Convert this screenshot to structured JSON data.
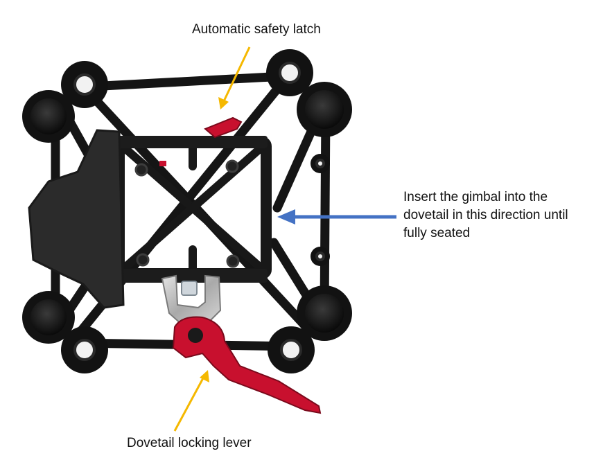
{
  "annotations": {
    "safety_latch": "Automatic safety latch",
    "insert_direction": "Insert the gimbal into the\ndovetail in this direction until\nfully seated",
    "locking_lever": "Dovetail locking lever"
  },
  "colors": {
    "background": "#ffffff",
    "bracket": "#141414",
    "pad": "#0c0c0c",
    "red_parts": "#c8102e",
    "metal_clip": "#b8b8b8",
    "arrow_yellow": "#f5b800",
    "arrow_blue": "#4472c4"
  }
}
